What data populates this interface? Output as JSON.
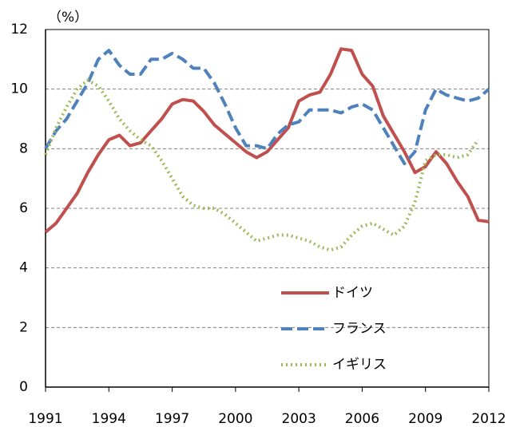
{
  "chart_data": {
    "type": "line",
    "y_label": "（%）",
    "x": [
      1991,
      1991.5,
      1992,
      1992.5,
      1993,
      1993.5,
      1994,
      1994.5,
      1995,
      1995.5,
      1996,
      1996.5,
      1997,
      1997.5,
      1998,
      1998.5,
      1999,
      1999.5,
      2000,
      2000.5,
      2001,
      2001.5,
      2002,
      2002.5,
      2003,
      2003.5,
      2004,
      2004.5,
      2005,
      2005.5,
      2006,
      2006.5,
      2007,
      2007.5,
      2008,
      2008.5,
      2009,
      2009.5,
      2010,
      2010.5,
      2011,
      2011.5,
      2012
    ],
    "series": [
      {
        "name": "ドイツ",
        "color": "#c0504d",
        "dash": "solid",
        "values": [
          5.2,
          5.5,
          6.0,
          6.5,
          7.2,
          7.8,
          8.3,
          8.45,
          8.1,
          8.2,
          8.6,
          9.0,
          9.5,
          9.65,
          9.6,
          9.25,
          8.8,
          8.5,
          8.2,
          7.9,
          7.7,
          7.9,
          8.3,
          8.7,
          9.6,
          9.8,
          9.9,
          10.5,
          11.35,
          11.3,
          10.5,
          10.1,
          9.1,
          8.5,
          7.9,
          7.2,
          7.4,
          7.9,
          7.5,
          6.9,
          6.4,
          5.6,
          5.55
        ]
      },
      {
        "name": "フランス",
        "color": "#4f81bd",
        "dash": "dashed",
        "values": [
          8.0,
          8.6,
          9.0,
          9.6,
          10.2,
          11.0,
          11.3,
          10.8,
          10.5,
          10.5,
          11.0,
          11.0,
          11.2,
          11.0,
          10.7,
          10.7,
          10.2,
          9.5,
          8.7,
          8.1,
          8.1,
          8.0,
          8.5,
          8.8,
          8.9,
          9.3,
          9.3,
          9.3,
          9.2,
          9.4,
          9.5,
          9.3,
          8.7,
          8.1,
          7.5,
          7.9,
          9.3,
          10.0,
          9.8,
          9.7,
          9.6,
          9.7,
          10.0
        ]
      },
      {
        "name": "イギリス",
        "color": "#9bbb59",
        "dash": "dotted",
        "values": [
          7.8,
          8.7,
          9.4,
          10.0,
          10.3,
          10.1,
          9.6,
          9.0,
          8.6,
          8.3,
          8.1,
          7.6,
          7.0,
          6.4,
          6.1,
          6.0,
          6.0,
          5.8,
          5.5,
          5.2,
          4.9,
          5.0,
          5.1,
          5.1,
          5.0,
          4.9,
          4.7,
          4.6,
          4.7,
          5.1,
          5.4,
          5.5,
          5.3,
          5.1,
          5.4,
          6.2,
          7.6,
          7.8,
          7.8,
          7.7,
          7.8,
          8.3,
          null
        ]
      }
    ],
    "xlim": [
      1991,
      2012
    ],
    "xticks": [
      1991,
      1994,
      1997,
      2000,
      2003,
      2006,
      2009,
      2012
    ],
    "ylim": [
      0,
      12
    ],
    "yticks": [
      0,
      2,
      4,
      6,
      8,
      10,
      12
    ],
    "grid": true
  }
}
